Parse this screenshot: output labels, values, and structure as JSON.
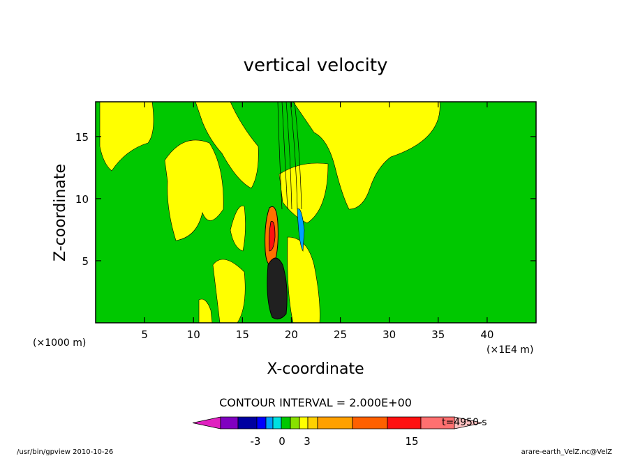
{
  "chart_data": {
    "type": "heatmap",
    "title": "vertical velocity",
    "xlabel": "X-coordinate",
    "ylabel": "Z-coordinate",
    "x_units_left": "(×1000 m)",
    "x_units_right": "(×1E4 m)",
    "xlim": [
      0,
      45
    ],
    "ylim": [
      0,
      17.8
    ],
    "x_ticks": [
      5,
      10,
      15,
      20,
      25,
      30,
      35,
      40
    ],
    "y_ticks": [
      5,
      10,
      15
    ],
    "contour_interval_text": "CONTOUR INTERVAL = 2.000E+00",
    "time_text": "t=4950 s",
    "colorbar": {
      "tick_labels": [
        "-3",
        "0",
        "3",
        "15"
      ],
      "colors": [
        "#e020c0",
        "#8000c0",
        "#0000a0",
        "#0000ff",
        "#00a0ff",
        "#00e0e0",
        "#00c800",
        "#88e000",
        "#ffff00",
        "#ffd000",
        "#ffa000",
        "#ff6000",
        "#ff1010",
        "#ff7070",
        "#ffc0c0"
      ]
    },
    "regions": {
      "background_level": "0",
      "levels_present": [
        "weak positive (yellow)",
        "weak negative (green)",
        "strong updraft (orange/red)",
        "downdraft (blue)"
      ]
    }
  },
  "footer": {
    "left": "/usr/bin/gpview   2010-10-26",
    "right": "arare-earth_VelZ.nc@VelZ"
  },
  "colors": {
    "green": "#00c800",
    "yellow": "#ffff00",
    "orange": "#ff7000",
    "red": "#ff1010"
  }
}
